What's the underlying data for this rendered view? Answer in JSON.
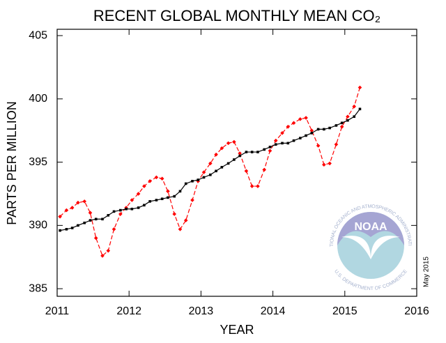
{
  "chart_data": {
    "type": "line",
    "title": "RECENT GLOBAL MONTHLY MEAN CO₂",
    "x_label": "YEAR",
    "y_label": "PARTS PER MILLION",
    "annotation": "May 2015",
    "logo": {
      "name": "NOAA",
      "ring_top": "NATIONAL OCEANIC AND ATMOSPHERIC ADMINISTRATION",
      "ring_bottom": "U.S. DEPARTMENT OF COMMERCE"
    },
    "xlim": [
      2011,
      2016
    ],
    "xticks": [
      2011,
      2012,
      2013,
      2014,
      2015,
      2016
    ],
    "ylim": [
      384.4,
      405.5
    ],
    "yticks": [
      385,
      390,
      395,
      400,
      405
    ],
    "x": [
      2011.04,
      2011.13,
      2011.21,
      2011.29,
      2011.38,
      2011.46,
      2011.54,
      2011.63,
      2011.71,
      2011.79,
      2011.88,
      2011.96,
      2012.04,
      2012.13,
      2012.21,
      2012.29,
      2012.38,
      2012.46,
      2012.54,
      2012.63,
      2012.71,
      2012.79,
      2012.88,
      2012.96,
      2013.04,
      2013.13,
      2013.21,
      2013.29,
      2013.38,
      2013.46,
      2013.54,
      2013.63,
      2013.71,
      2013.79,
      2013.88,
      2013.96,
      2014.04,
      2014.13,
      2014.21,
      2014.29,
      2014.38,
      2014.46,
      2014.54,
      2014.63,
      2014.71,
      2014.79,
      2014.88,
      2014.96,
      2015.04,
      2015.13,
      2015.21
    ],
    "series": [
      {
        "color": "#ff0000",
        "dashed": true,
        "marker": "diamond",
        "values": [
          390.7,
          391.2,
          391.4,
          391.8,
          391.9,
          391.0,
          389.0,
          387.6,
          388.0,
          389.7,
          390.9,
          391.4,
          392.0,
          392.5,
          393.1,
          393.5,
          393.8,
          393.7,
          392.7,
          390.9,
          389.7,
          390.4,
          392.0,
          393.5,
          394.2,
          394.9,
          395.6,
          396.1,
          396.5,
          396.6,
          395.7,
          394.3,
          393.1,
          393.1,
          394.4,
          395.9,
          396.7,
          397.3,
          397.8,
          398.1,
          398.4,
          398.5,
          397.5,
          396.3,
          394.8,
          394.9,
          396.4,
          397.8,
          398.6,
          399.4,
          400.9
        ]
      },
      {
        "color": "#000000",
        "dashed": false,
        "marker": "square",
        "values": [
          389.6,
          389.7,
          389.8,
          390.0,
          390.2,
          390.4,
          390.5,
          390.5,
          390.8,
          391.1,
          391.2,
          391.3,
          391.3,
          391.4,
          391.6,
          391.9,
          392.0,
          392.1,
          392.2,
          392.3,
          392.7,
          393.3,
          393.5,
          393.6,
          393.8,
          394.0,
          394.3,
          394.6,
          394.9,
          395.2,
          395.5,
          395.8,
          395.8,
          395.8,
          396.0,
          396.2,
          396.4,
          396.5,
          396.5,
          396.7,
          396.9,
          397.1,
          397.3,
          397.6,
          397.6,
          397.7,
          397.9,
          398.1,
          398.3,
          398.6,
          399.2
        ]
      }
    ]
  }
}
